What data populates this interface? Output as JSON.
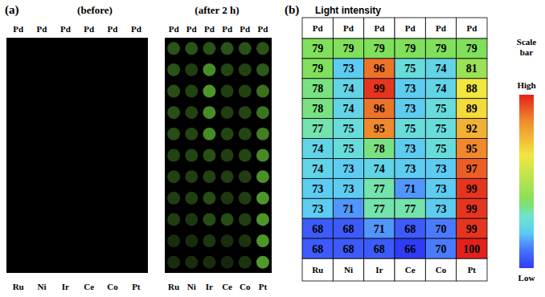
{
  "chart_data": [
    {
      "type": "spot_array",
      "panel_label": "(a)",
      "panels": [
        "(before)",
        "(after 2 h)"
      ],
      "top_labels": [
        "Pd",
        "Pd",
        "Pd",
        "Pd",
        "Pd",
        "Pd"
      ],
      "bottom_labels": [
        "Ru",
        "Ni",
        "Ir",
        "Ce",
        "Co",
        "Pt"
      ]
    },
    {
      "type": "heatmap",
      "panel_label": "(b)",
      "title": "Light intensity",
      "top_labels": [
        "Pd",
        "Pd",
        "Pd",
        "Pd",
        "Pd",
        "Pd"
      ],
      "bottom_labels": [
        "Ru",
        "Ni",
        "Ir",
        "Ce",
        "Co",
        "Pt"
      ],
      "data_labels": true,
      "cells": [
        [
          79,
          79,
          79,
          79,
          79,
          79
        ],
        [
          79,
          73,
          96,
          75,
          74,
          81
        ],
        [
          78,
          74,
          99,
          73,
          74,
          88
        ],
        [
          78,
          74,
          96,
          73,
          75,
          89
        ],
        [
          77,
          75,
          95,
          75,
          75,
          92
        ],
        [
          74,
          75,
          78,
          73,
          75,
          95
        ],
        [
          74,
          73,
          74,
          73,
          73,
          97
        ],
        [
          73,
          73,
          77,
          71,
          73,
          99
        ],
        [
          73,
          71,
          77,
          77,
          73,
          99
        ],
        [
          68,
          68,
          71,
          68,
          70,
          99
        ],
        [
          68,
          68,
          68,
          66,
          70,
          100
        ]
      ],
      "colorbar": {
        "title": "Scale bar",
        "high_label": "High",
        "low_label": "Low",
        "range": [
          66,
          100
        ]
      }
    }
  ]
}
